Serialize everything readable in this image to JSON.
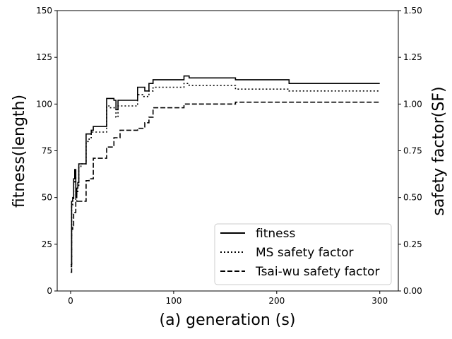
{
  "chart_data": {
    "type": "line",
    "title": "",
    "xlabel": "(a) generation (s)",
    "ylabel": "fitness(length)",
    "ylabel_right": "safety factor(SF)",
    "xlim": [
      -13,
      318
    ],
    "ylim": [
      0,
      150
    ],
    "ylim_right": [
      0,
      1.5
    ],
    "xticks": [
      "0",
      "100",
      "200",
      "300"
    ],
    "yticks": [
      "0",
      "25",
      "50",
      "75",
      "100",
      "125",
      "150"
    ],
    "yticks_right": [
      "0.00",
      "0.25",
      "0.50",
      "0.75",
      "1.00",
      "1.25",
      "1.50"
    ],
    "grid": false,
    "legend_position": "bottom-right",
    "series": [
      {
        "name": "fitness",
        "axis": "left",
        "style": "solid",
        "color": "#000000",
        "x": [
          0,
          1,
          2,
          3,
          4,
          5,
          6,
          7,
          8,
          10,
          15,
          18,
          20,
          22,
          30,
          35,
          38,
          42,
          44,
          46,
          55,
          62,
          65,
          70,
          72,
          76,
          80,
          100,
          110,
          115,
          150,
          160,
          200,
          212,
          300
        ],
        "y": [
          14,
          48,
          50,
          60,
          65,
          50,
          55,
          58,
          68,
          68,
          84,
          84,
          86,
          88,
          88,
          103,
          103,
          102,
          97,
          102,
          102,
          102,
          109,
          109,
          107,
          111,
          113,
          113,
          115,
          114,
          114,
          113,
          113,
          111,
          111
        ]
      },
      {
        "name": "MS safety factor",
        "axis": "right",
        "style": "dotted",
        "color": "#000000",
        "x": [
          0,
          1,
          2,
          3,
          4,
          5,
          6,
          7,
          8,
          10,
          15,
          18,
          20,
          22,
          30,
          35,
          38,
          42,
          44,
          46,
          55,
          62,
          65,
          70,
          72,
          76,
          80,
          100,
          110,
          115,
          150,
          160,
          200,
          212,
          300
        ],
        "y": [
          0.13,
          0.46,
          0.49,
          0.58,
          0.62,
          0.48,
          0.52,
          0.56,
          0.66,
          0.68,
          0.8,
          0.82,
          0.85,
          0.85,
          0.85,
          0.99,
          0.98,
          0.98,
          0.93,
          0.99,
          0.99,
          0.99,
          1.05,
          1.04,
          1.04,
          1.07,
          1.09,
          1.09,
          1.11,
          1.1,
          1.1,
          1.08,
          1.08,
          1.07,
          1.07
        ]
      },
      {
        "name": "Tsai-wu safety factor",
        "axis": "right",
        "style": "dashed",
        "color": "#000000",
        "x": [
          0,
          1,
          2,
          3,
          5,
          8,
          10,
          15,
          18,
          22,
          30,
          35,
          38,
          42,
          44,
          48,
          55,
          62,
          65,
          70,
          72,
          76,
          80,
          100,
          110,
          115,
          150,
          160,
          200,
          212,
          300
        ],
        "y": [
          0.1,
          0.33,
          0.35,
          0.42,
          0.48,
          0.48,
          0.48,
          0.59,
          0.6,
          0.71,
          0.71,
          0.77,
          0.77,
          0.82,
          0.82,
          0.86,
          0.86,
          0.86,
          0.87,
          0.87,
          0.9,
          0.93,
          0.98,
          0.98,
          1.0,
          1.0,
          1.0,
          1.01,
          1.01,
          1.01,
          1.01
        ]
      }
    ]
  }
}
